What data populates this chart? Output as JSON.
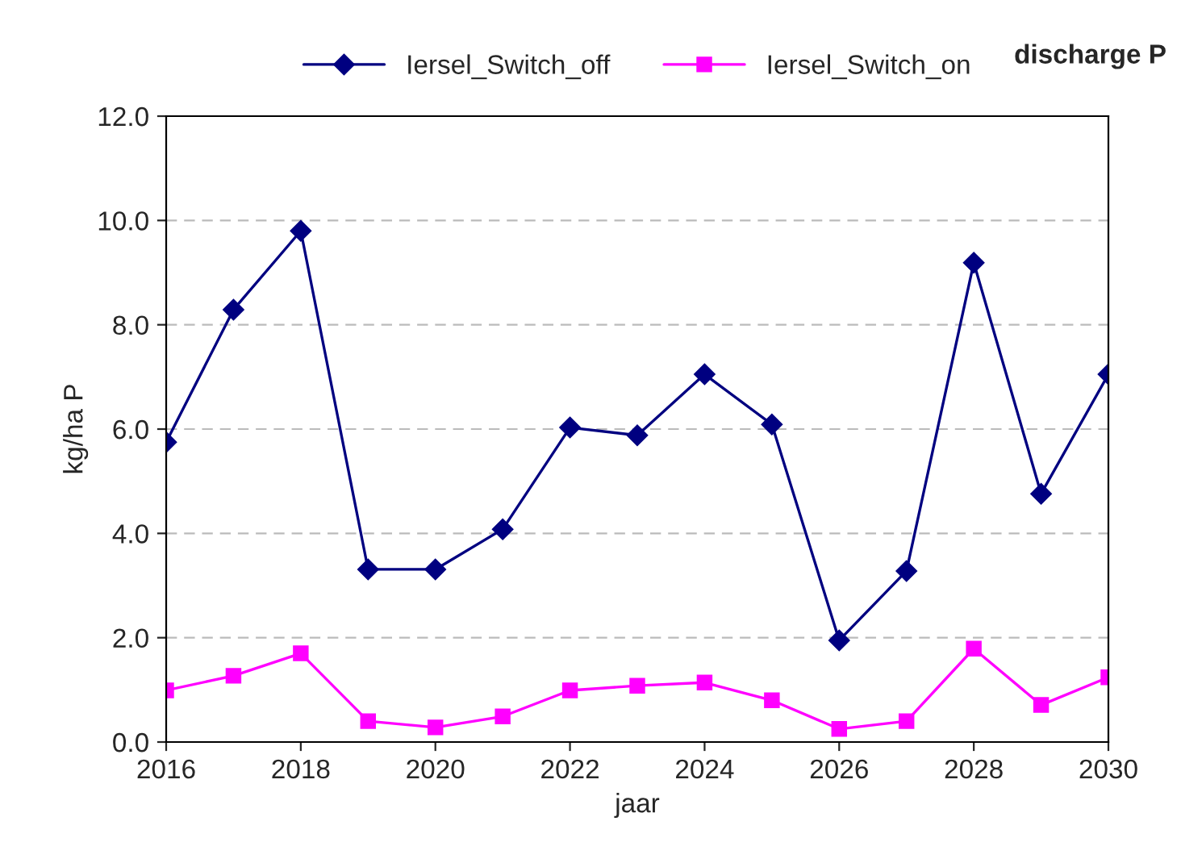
{
  "chart_data": {
    "type": "line",
    "title": "discharge P",
    "xlabel": "jaar",
    "ylabel": "kg/ha P",
    "x": [
      2016,
      2017,
      2018,
      2019,
      2020,
      2021,
      2022,
      2023,
      2024,
      2025,
      2026,
      2027,
      2028,
      2029,
      2030
    ],
    "series": [
      {
        "name": "Iersel_Switch_off",
        "color": "#000080",
        "marker": "diamond",
        "values": [
          5.75,
          8.29,
          9.8,
          3.31,
          3.31,
          4.08,
          6.03,
          5.88,
          7.05,
          6.09,
          1.95,
          3.28,
          9.19,
          4.76,
          7.05
        ]
      },
      {
        "name": "Iersel_Switch_on",
        "color": "#ff00ff",
        "marker": "square",
        "values": [
          0.99,
          1.27,
          1.7,
          0.4,
          0.28,
          0.49,
          0.99,
          1.08,
          1.14,
          0.8,
          0.25,
          0.4,
          1.79,
          0.71,
          1.24
        ]
      }
    ],
    "xlim": [
      2016,
      2030
    ],
    "xticks": [
      2016,
      2018,
      2020,
      2022,
      2024,
      2026,
      2028,
      2030
    ],
    "ylim": [
      0,
      12
    ],
    "yticks": [
      {
        "value": 0,
        "label": "0.0"
      },
      {
        "value": 2,
        "label": "2.0"
      },
      {
        "value": 4,
        "label": "4.0"
      },
      {
        "value": 6,
        "label": "6.0"
      },
      {
        "value": 8,
        "label": "8.0"
      },
      {
        "value": 10,
        "label": "10.0"
      },
      {
        "value": 12,
        "label": "12.0"
      }
    ],
    "grid": "y",
    "legend": "top",
    "line_style": "solid"
  }
}
